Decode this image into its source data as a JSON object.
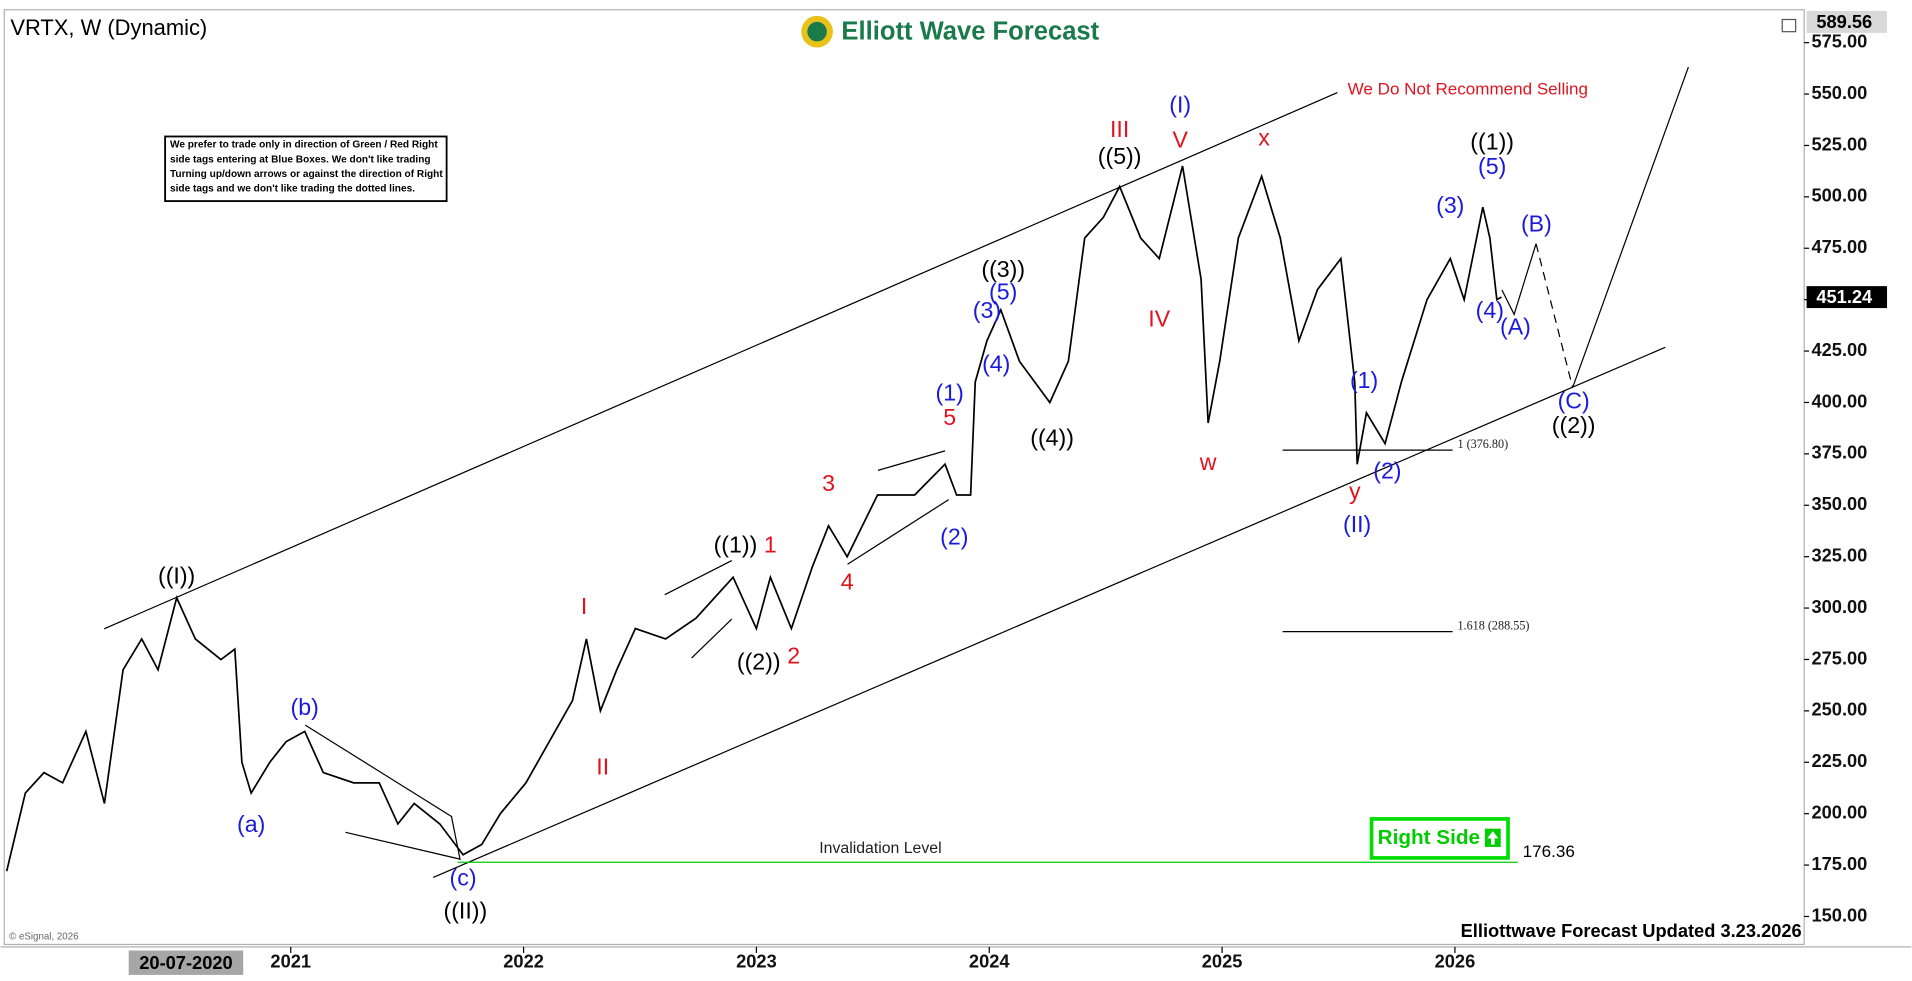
{
  "chart_data": {
    "type": "line",
    "title": "VRTX, W (Dynamic)",
    "logo": "Elliott Wave Forecast",
    "warning": "We Do Not Recommend Selling",
    "notice": [
      "We prefer to trade only in direction of Green / Red Right",
      "side tags entering at Blue Boxes. We don't like trading",
      "Turning up/down arrows or against the direction of Right",
      "side tags and we don't like trading the dotted lines."
    ],
    "footer": "Elliottwave Forecast Updated 3.23.2026",
    "credit": "© eSignal, 2026",
    "right_side": "Right Side",
    "color": "#000000",
    "x": [
      2019.78,
      2019.86,
      2019.94,
      2020.02,
      2020.12,
      2020.2,
      2020.28,
      2020.36,
      2020.43,
      2020.51,
      2020.59,
      2020.7,
      2020.76,
      2020.79,
      2020.83,
      2020.91,
      2020.98,
      2021.06,
      2021.14,
      2021.27,
      2021.38,
      2021.46,
      2021.53,
      2021.64,
      2021.74,
      2021.82,
      2021.9,
      2022.01,
      2022.11,
      2022.21,
      2022.27,
      2022.33,
      2022.4,
      2022.48,
      2022.61,
      2022.74,
      2022.9,
      2023.0,
      2023.06,
      2023.15,
      2023.24,
      2023.31,
      2023.39,
      2023.52,
      2023.68,
      2023.81,
      2023.86,
      2023.92,
      2023.94,
      2023.99,
      2024.05,
      2024.13,
      2024.26,
      2024.34,
      2024.41,
      2024.49,
      2024.56,
      2024.65,
      2024.73,
      2024.83,
      2024.91,
      2024.94,
      2024.99,
      2025.07,
      2025.17,
      2025.25,
      2025.33,
      2025.41,
      2025.51,
      2025.57,
      2025.58,
      2025.62,
      2025.7,
      2025.77,
      2025.88,
      2025.98,
      2026.04,
      2026.12,
      2026.15,
      2026.18,
      2026.2
    ],
    "values": [
      172,
      210,
      220,
      215,
      240,
      205,
      270,
      285,
      270,
      305,
      285,
      275,
      280,
      225,
      210,
      225,
      235,
      240,
      220,
      215,
      215,
      195,
      205,
      195,
      180,
      185,
      200,
      215,
      235,
      255,
      285,
      250,
      270,
      290,
      285,
      295,
      315,
      290,
      315,
      290,
      320,
      340,
      325,
      355,
      355,
      370,
      355,
      355,
      410,
      430,
      445,
      420,
      400,
      420,
      480,
      490,
      505,
      480,
      470,
      515,
      460,
      390,
      420,
      480,
      510,
      480,
      430,
      455,
      470,
      410,
      370,
      395,
      380,
      410,
      450,
      470,
      450,
      495,
      480,
      450,
      451.24
    ],
    "xlim": [
      2019.78,
      2027.5
    ],
    "xticks": [
      2021,
      2022,
      2023,
      2024,
      2025,
      2026
    ],
    "cursor_date": {
      "value": 2020.55,
      "label": "20-07-2020"
    },
    "ylim": [
      136.4,
      591
    ],
    "yticks": [
      {
        "value": 150,
        "label": "150.00"
      },
      {
        "value": 175,
        "label": "175.00"
      },
      {
        "value": 200,
        "label": "200.00"
      },
      {
        "value": 225,
        "label": "225.00"
      },
      {
        "value": 250,
        "label": "250.00"
      },
      {
        "value": 275,
        "label": "275.00"
      },
      {
        "value": 300,
        "label": "300.00"
      },
      {
        "value": 325,
        "label": "325.00"
      },
      {
        "value": 350,
        "label": "350.00"
      },
      {
        "value": 375,
        "label": "375.00"
      },
      {
        "value": 400,
        "label": "400.00"
      },
      {
        "value": 425,
        "label": "425.00"
      },
      {
        "value": 450,
        "label": "450.00"
      },
      {
        "value": 475,
        "label": "475.00"
      },
      {
        "value": 500,
        "label": "500.00"
      },
      {
        "value": 525,
        "label": "525.00"
      },
      {
        "value": 550,
        "label": "550.00"
      },
      {
        "value": 575,
        "label": "575.00"
      }
    ],
    "price_tags": [
      {
        "value": 589.56,
        "label": "589.56",
        "background": "#d9d9d9",
        "text_color": "#000000"
      },
      {
        "value": 451.24,
        "label": "451.24",
        "background": "#000000",
        "text_color": "#ffffff"
      }
    ],
    "invalidation": {
      "label": "Invalidation Level",
      "value": 176.36,
      "color": "#00cc00"
    },
    "fib_levels": [
      {
        "label": "1 (376.80)",
        "value": 376.8,
        "xrange": [
          2025.26,
          2025.99
        ]
      },
      {
        "label": "1.618 (288.55)",
        "value": 288.55,
        "xrange": [
          2025.26,
          2025.99
        ]
      }
    ],
    "annotations": [
      {
        "label": "((I))",
        "x": 2020.51,
        "y": 315,
        "color": "#000000"
      },
      {
        "label": "(a)",
        "x": 2020.83,
        "y": 194,
        "color": "#1a1adc"
      },
      {
        "label": "(b)",
        "x": 2021.06,
        "y": 251,
        "color": "#1a1adc"
      },
      {
        "label": "(c)",
        "x": 2021.74,
        "y": 168,
        "color": "#1a1adc"
      },
      {
        "label": "((II))",
        "x": 2021.75,
        "y": 152,
        "color": "#000000"
      },
      {
        "label": "I",
        "x": 2022.26,
        "y": 300,
        "color": "#e0141e"
      },
      {
        "label": "II",
        "x": 2022.34,
        "y": 222,
        "color": "#e0141e"
      },
      {
        "label": "((1))",
        "x": 2022.91,
        "y": 330,
        "color": "#000000"
      },
      {
        "label": "1",
        "x": 2023.06,
        "y": 330,
        "color": "#e0141e"
      },
      {
        "label": "((2))",
        "x": 2023.01,
        "y": 273,
        "color": "#000000"
      },
      {
        "label": "2",
        "x": 2023.16,
        "y": 276,
        "color": "#e0141e"
      },
      {
        "label": "3",
        "x": 2023.31,
        "y": 360,
        "color": "#e0141e"
      },
      {
        "label": "4",
        "x": 2023.39,
        "y": 312,
        "color": "#e0141e"
      },
      {
        "label": "5",
        "x": 2023.83,
        "y": 392,
        "color": "#e0141e"
      },
      {
        "label": "(1)",
        "x": 2023.83,
        "y": 404,
        "color": "#1a1adc"
      },
      {
        "label": "(2)",
        "x": 2023.85,
        "y": 334,
        "color": "#1a1adc"
      },
      {
        "label": "(3)",
        "x": 2023.99,
        "y": 444,
        "color": "#1a1adc"
      },
      {
        "label": "(4)",
        "x": 2024.03,
        "y": 418,
        "color": "#1a1adc"
      },
      {
        "label": "(5)",
        "x": 2024.06,
        "y": 453,
        "color": "#1a1adc"
      },
      {
        "label": "((3))",
        "x": 2024.06,
        "y": 464,
        "color": "#000000"
      },
      {
        "label": "((4))",
        "x": 2024.27,
        "y": 382,
        "color": "#000000"
      },
      {
        "label": "((5))",
        "x": 2024.56,
        "y": 519,
        "color": "#000000"
      },
      {
        "label": "III",
        "x": 2024.56,
        "y": 532,
        "color": "#e0141e"
      },
      {
        "label": "(I)",
        "x": 2024.82,
        "y": 544,
        "color": "#1a1adc"
      },
      {
        "label": "V",
        "x": 2024.82,
        "y": 527,
        "color": "#e0141e"
      },
      {
        "label": "IV",
        "x": 2024.73,
        "y": 440,
        "color": "#e0141e"
      },
      {
        "label": "w",
        "x": 2024.94,
        "y": 370,
        "color": "#e0141e"
      },
      {
        "label": "x",
        "x": 2025.18,
        "y": 528,
        "color": "#e0141e"
      },
      {
        "label": "y",
        "x": 2025.57,
        "y": 356,
        "color": "#e0141e"
      },
      {
        "label": "(II)",
        "x": 2025.58,
        "y": 340,
        "color": "#1a1adc"
      },
      {
        "label": "(1)",
        "x": 2025.61,
        "y": 410,
        "color": "#1a1adc"
      },
      {
        "label": "(2)",
        "x": 2025.71,
        "y": 366,
        "color": "#1a1adc"
      },
      {
        "label": "(3)",
        "x": 2025.98,
        "y": 495,
        "color": "#1a1adc"
      },
      {
        "label": "((1))",
        "x": 2026.16,
        "y": 526,
        "color": "#000000"
      },
      {
        "label": "(5)",
        "x": 2026.16,
        "y": 514,
        "color": "#1a1adc"
      },
      {
        "label": "(4)",
        "x": 2026.15,
        "y": 444,
        "color": "#1a1adc"
      },
      {
        "label": "(A)",
        "x": 2026.26,
        "y": 436,
        "color": "#1a1adc"
      },
      {
        "label": "(B)",
        "x": 2026.35,
        "y": 486,
        "color": "#1a1adc"
      },
      {
        "label": "(C)",
        "x": 2026.51,
        "y": 400,
        "color": "#1a1adc"
      },
      {
        "label": "((2))",
        "x": 2026.51,
        "y": 388,
        "color": "#000000"
      }
    ]
  }
}
